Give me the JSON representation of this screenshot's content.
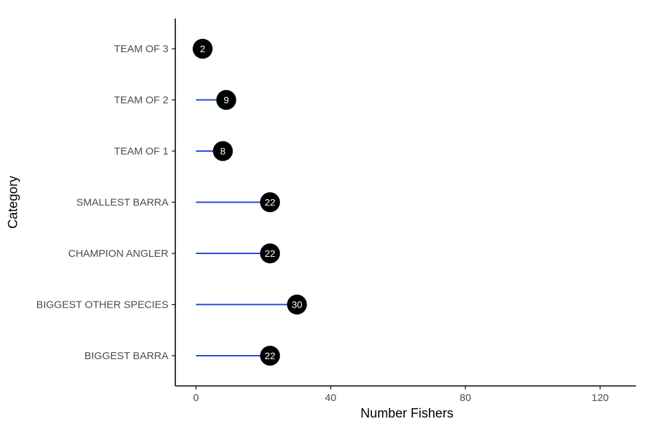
{
  "chart_data": {
    "type": "lollipop",
    "categories": [
      "BIGGEST BARRA",
      "BIGGEST OTHER SPECIES",
      "CHAMPION ANGLER",
      "SMALLEST BARRA",
      "TEAM OF 1",
      "TEAM OF 2",
      "TEAM OF 3"
    ],
    "values": [
      22,
      30,
      22,
      22,
      8,
      9,
      2
    ],
    "xlabel": "Number Fishers",
    "ylabel": "Category",
    "xlim": [
      -4,
      131
    ],
    "xticks": [
      0,
      40,
      80,
      120
    ],
    "grid": false,
    "legend": "none",
    "colors": {
      "stem": "#2345e0",
      "point": "#000000",
      "label": "#ffffff",
      "axis": "#000000",
      "tick_text": "#4d4d4d"
    }
  }
}
